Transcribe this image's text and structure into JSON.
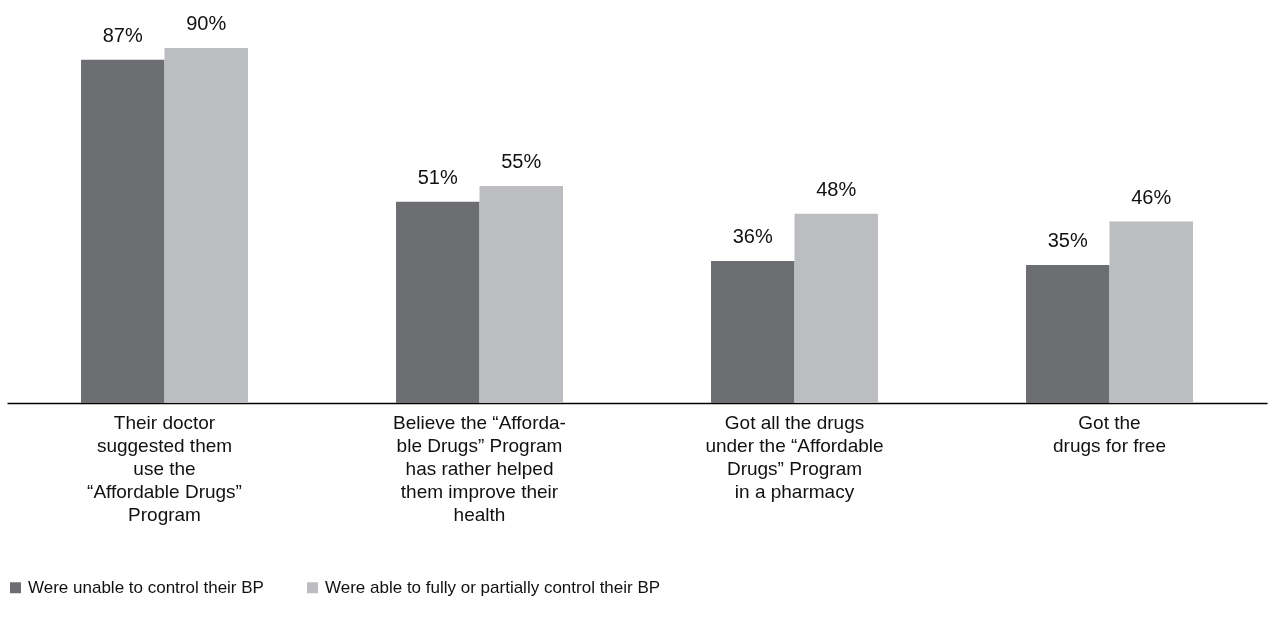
{
  "chart_data": {
    "type": "bar",
    "categories": [
      "Their doctor\nsuggested them\nuse the\n“Affordable Drugs”\nProgram",
      "Believe the “Afforda-\nble Drugs” Program\nhas rather helped\nthem improve their\nhealth",
      "Got all the drugs\nunder the “Affordable\nDrugs” Program\nin a pharmacy",
      "Got the\ndrugs for free"
    ],
    "series": [
      {
        "name": "Were unable to control their BP",
        "color": "#6d6e72",
        "values": [
          87,
          51,
          36,
          35
        ],
        "value_labels": [
          "87%",
          "51%",
          "36%",
          "35%"
        ]
      },
      {
        "name": "Were able to fully or partially control their BP",
        "color": "#bcbdc1",
        "values": [
          90,
          55,
          48,
          46
        ],
        "value_labels": [
          "90%",
          "55%",
          "48%",
          "46%"
        ]
      }
    ],
    "legend": "bottom"
  }
}
